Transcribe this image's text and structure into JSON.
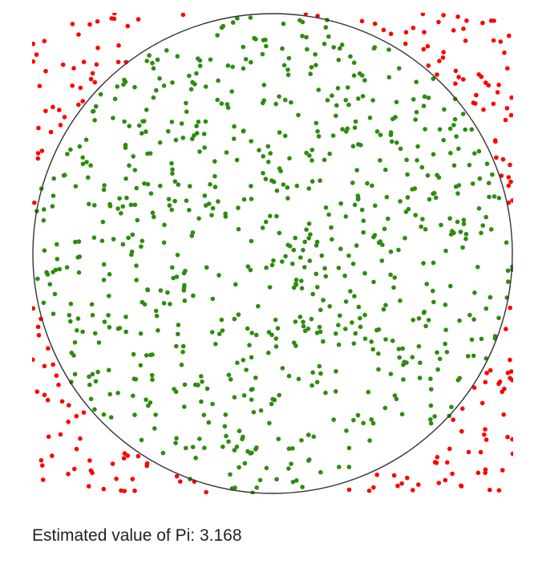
{
  "result": {
    "label": "Estimated value of Pi:",
    "value": "3.168"
  },
  "simulation": {
    "shape": "circle inscribed in square",
    "total_points": 1000,
    "points_inside_circle": 792,
    "points_outside_circle": 208,
    "inside_color": "#2e8b0e",
    "outside_color": "#ff0000",
    "circle_outline_color": "#333333"
  }
}
